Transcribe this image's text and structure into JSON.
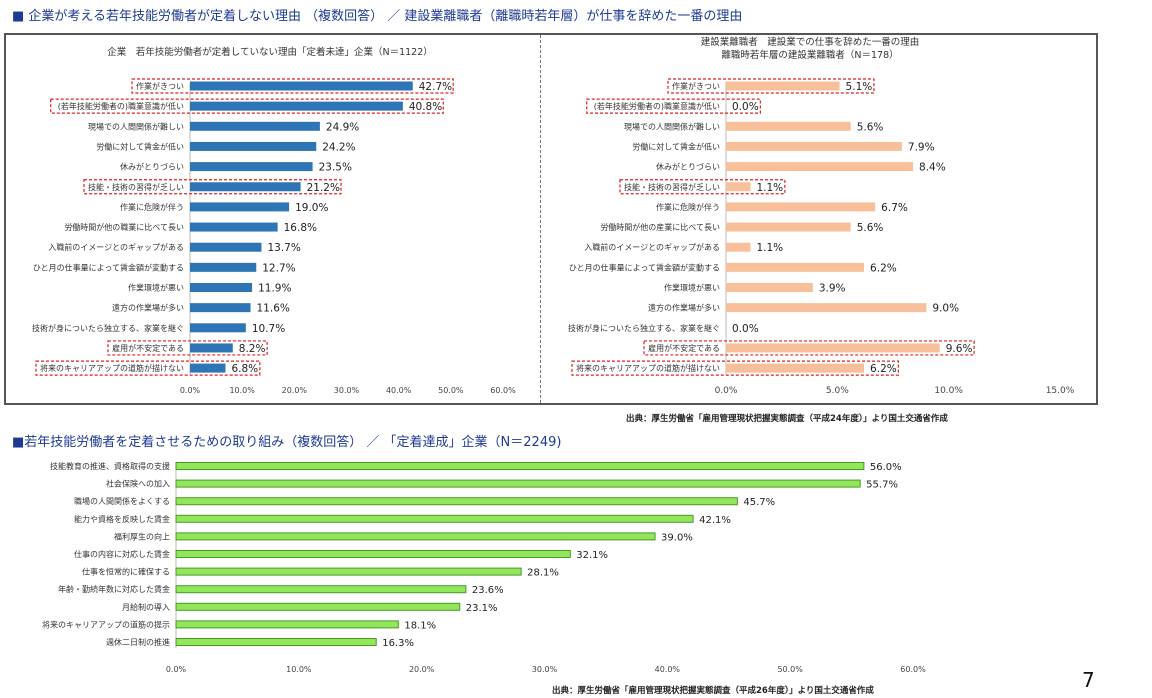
{
  "header1": "■ 企業が考える若年技能労働者が定着しない理由 （複数回答） ／ 建設業離職者（離職時若年層）が仕事を辞めた一番の理由",
  "header2_prefix": "■",
  "header2": "若年技能労働者を定着させるための取り組み（複数回答） ／ 「定着達成」企業（N＝2249)",
  "source1": "出典：厚生労働省「雇用管理現状把握実態調査（平成24年度）」より国土交通省作成",
  "source2": "出典：厚生労働省「雇用管理現状把握実態調査（平成26年度）」より国土交通省作成",
  "page_number": "7",
  "colors": {
    "blue": "#2e75b6",
    "orange": "#f8c09a",
    "green": "#92e65a",
    "green_stroke": "#4a9a2a",
    "highlight": "#e02020"
  },
  "chart_data": [
    {
      "id": "left",
      "type": "bar",
      "orientation": "horizontal",
      "title": "企業　若年技能労働者が定着していない理由「定着未達」企業（N＝1122）",
      "categories": [
        "作業がきつい",
        "(若年技能労働者の)職業意識が低い",
        "現場での人間関係が難しい",
        "労働に対して賃金が低い",
        "休みがとりづらい",
        "技能・技術の習得が乏しい",
        "作業に危険が伴う",
        "労働時間が他の職業に比べて長い",
        "入職前のイメージとのギャップがある",
        "ひと月の仕事量によって賃金額が変動する",
        "作業環境が悪い",
        "遠方の作業場が多い",
        "技術が身についたら独立する、家業を継ぐ",
        "雇用が不安定である",
        "将来のキャリアアップの道筋が描けない"
      ],
      "values": [
        42.7,
        40.8,
        24.9,
        24.2,
        23.5,
        21.2,
        19.0,
        16.8,
        13.7,
        12.7,
        11.9,
        11.6,
        10.7,
        8.2,
        6.8
      ],
      "value_labels": [
        "42.7%",
        "40.8%",
        "24.9%",
        "24.2%",
        "23.5%",
        "21.2%",
        "19.0%",
        "16.8%",
        "13.7%",
        "12.7%",
        "11.9%",
        "11.6%",
        "10.7%",
        "8.2%",
        "6.8%"
      ],
      "highlighted": [
        0,
        1,
        5,
        13,
        14
      ],
      "xlim": [
        0,
        60
      ],
      "xticks": [
        "0.0%",
        "10.0%",
        "20.0%",
        "30.0%",
        "40.0%",
        "50.0%",
        "60.0%"
      ]
    },
    {
      "id": "right",
      "type": "bar",
      "orientation": "horizontal",
      "title": "建設業離職者　建設業での仕事を辞めた一番の理由",
      "subtitle": "離職時若年層の建設業離職者（N＝178）",
      "categories": [
        "作業がきつい",
        "(若年技能労働者の)職業意識が低い",
        "現場での人間関係が難しい",
        "労働に対して賃金が低い",
        "休みがとりづらい",
        "技能・技術の習得が乏しい",
        "作業に危険が伴う",
        "労働時間が他の産業に比べて長い",
        "入職前のイメージとのギャップがある",
        "ひと月の仕事量によって賃金額が変動する",
        "作業環境が悪い",
        "遠方の作業場が多い",
        "技術が身についたら独立する、家業を継ぐ",
        "雇用が不安定である",
        "将来のキャリアアップの道筋が描けない"
      ],
      "values": [
        5.1,
        0.0,
        5.6,
        7.9,
        8.4,
        1.1,
        6.7,
        5.6,
        1.1,
        6.2,
        3.9,
        9.0,
        0.0,
        9.6,
        6.2
      ],
      "value_labels": [
        "5.1%",
        "0.0%",
        "5.6%",
        "7.9%",
        "8.4%",
        "1.1%",
        "6.7%",
        "5.6%",
        "1.1%",
        "6.2%",
        "3.9%",
        "9.0%",
        "0.0%",
        "9.6%",
        "6.2%"
      ],
      "highlighted": [
        0,
        1,
        5,
        13,
        14
      ],
      "xlim": [
        0,
        15
      ],
      "xticks": [
        "0.0%",
        "5.0%",
        "10.0%",
        "15.0%"
      ]
    },
    {
      "id": "bottom",
      "type": "bar",
      "orientation": "horizontal",
      "title": "若年技能労働者を定着させるための取り組み（複数回答） ／ 「定着達成」企業（N＝2249)",
      "categories": [
        "技能教育の推進、資格取得の支援",
        "社会保険への加入",
        "職場の人間関係をよくする",
        "能力や資格を反映した賃金",
        "福利厚生の向上",
        "仕事の内容に対応した賃金",
        "仕事を恒常的に確保する",
        "年齢・勤続年数に対応した賃金",
        "月給制の導入",
        "将来のキャリアアップの道筋の提示",
        "週休二日制の推進"
      ],
      "values": [
        56.0,
        55.7,
        45.7,
        42.1,
        39.0,
        32.1,
        28.1,
        23.6,
        23.1,
        18.1,
        16.3
      ],
      "value_labels": [
        "56.0%",
        "55.7%",
        "45.7%",
        "42.1%",
        "39.0%",
        "32.1%",
        "28.1%",
        "23.6%",
        "23.1%",
        "18.1%",
        "16.3%"
      ],
      "xlim": [
        0,
        60
      ],
      "xticks": [
        "0.0%",
        "10.0%",
        "20.0%",
        "30.0%",
        "40.0%",
        "50.0%",
        "60.0%"
      ]
    }
  ]
}
